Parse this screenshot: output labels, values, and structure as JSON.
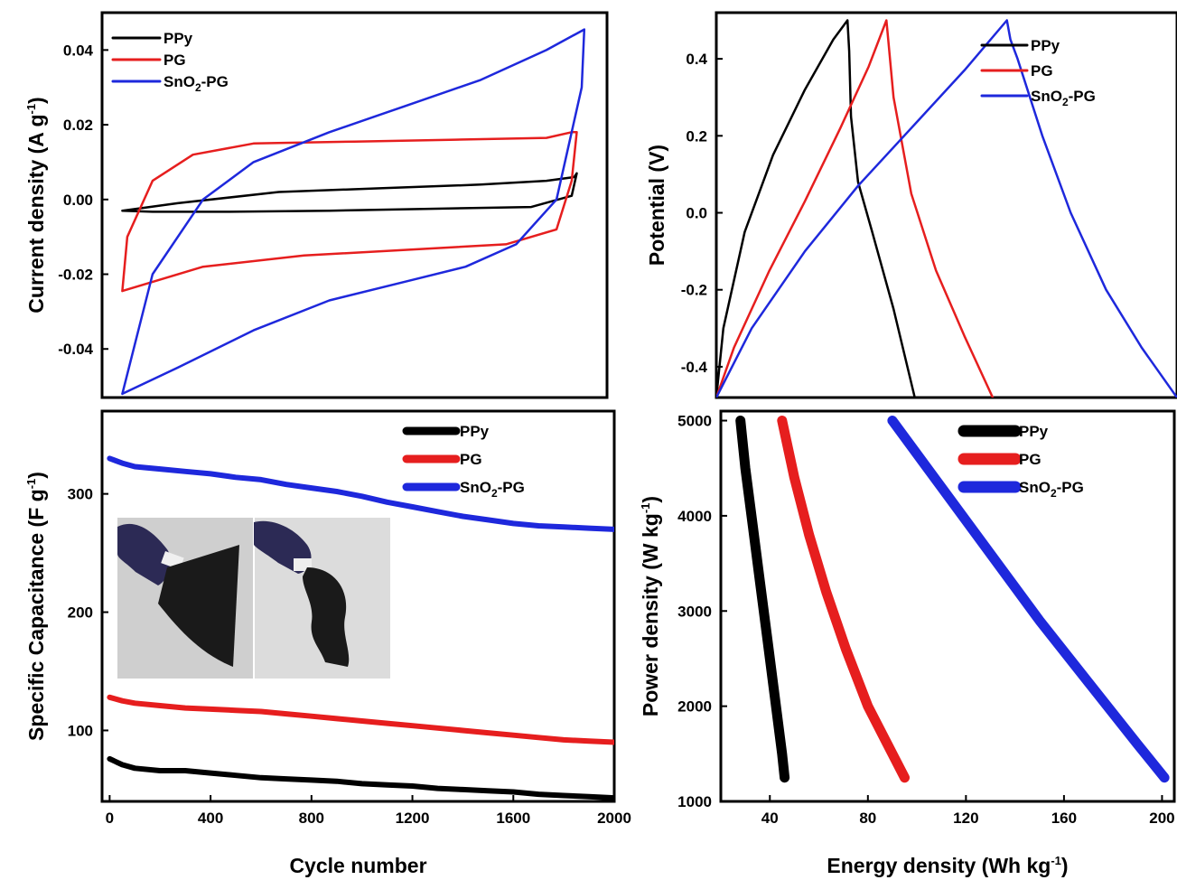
{
  "chart_data": [
    {
      "type": "line",
      "panel": "cv",
      "ylabel": "Current density (A g",
      "ylabel_sup": "-1",
      "ylabel_close": ")",
      "xlabel": "",
      "xlim": [
        0,
        1
      ],
      "ylim": [
        -0.053,
        0.05
      ],
      "y_ticks": [
        "0.04",
        "0.02",
        "0.00",
        "-0.02",
        "-0.04"
      ],
      "y_tick_values": [
        0.04,
        0.02,
        0.0,
        -0.02,
        -0.04
      ],
      "x_ticks": [],
      "legend_position": "top-left",
      "series": [
        {
          "name": "PPy",
          "color": "#000000",
          "x": [
            0.04,
            0.15,
            0.35,
            0.55,
            0.75,
            0.88,
            0.935,
            0.94,
            0.93,
            0.85,
            0.65,
            0.45,
            0.25,
            0.1,
            0.04
          ],
          "y": [
            -0.003,
            -0.001,
            0.002,
            0.003,
            0.004,
            0.005,
            0.006,
            0.007,
            0.001,
            -0.002,
            -0.0025,
            -0.003,
            -0.0033,
            -0.0033,
            -0.003
          ]
        },
        {
          "name": "PG",
          "color": "#e61e1e",
          "x": [
            0.04,
            0.05,
            0.1,
            0.18,
            0.3,
            0.5,
            0.7,
            0.88,
            0.93,
            0.94,
            0.93,
            0.9,
            0.8,
            0.6,
            0.4,
            0.2,
            0.04
          ],
          "y": [
            -0.0245,
            -0.01,
            0.005,
            0.012,
            0.015,
            0.0155,
            0.016,
            0.0165,
            0.018,
            0.018,
            0.005,
            -0.008,
            -0.012,
            -0.0135,
            -0.015,
            -0.018,
            -0.0245
          ]
        },
        {
          "name": "SnO2-PG",
          "color": "#1e28dc",
          "x": [
            0.04,
            0.1,
            0.2,
            0.3,
            0.45,
            0.6,
            0.75,
            0.88,
            0.955,
            0.95,
            0.9,
            0.82,
            0.72,
            0.6,
            0.45,
            0.3,
            0.15,
            0.04
          ],
          "y": [
            -0.052,
            -0.02,
            0.0,
            0.01,
            0.018,
            0.025,
            0.032,
            0.04,
            0.0455,
            0.03,
            0.0,
            -0.012,
            -0.018,
            -0.022,
            -0.027,
            -0.035,
            -0.045,
            -0.052
          ]
        }
      ],
      "legend": [
        {
          "label": "PPy",
          "sub": ""
        },
        {
          "label": "PG",
          "sub": ""
        },
        {
          "label": "SnO",
          "sub": "2",
          "tail": "-PG"
        }
      ]
    },
    {
      "type": "line",
      "panel": "gcd",
      "ylabel": "Potential (V)",
      "xlabel": "",
      "xlim": [
        0,
        130
      ],
      "ylim": [
        -0.48,
        0.52
      ],
      "y_ticks": [
        "0.4",
        "0.2",
        "0.0",
        "-0.2",
        "-0.4"
      ],
      "y_tick_values": [
        0.4,
        0.2,
        0.0,
        -0.2,
        -0.4
      ],
      "x_ticks": [],
      "legend_position": "top-right",
      "series": [
        {
          "name": "PPy",
          "color": "#000000",
          "x": [
            0,
            2,
            8,
            16,
            25,
            33,
            37,
            37.5,
            38,
            40,
            44,
            50,
            56
          ],
          "y": [
            -0.48,
            -0.3,
            -0.05,
            0.15,
            0.32,
            0.45,
            0.5,
            0.42,
            0.25,
            0.08,
            -0.05,
            -0.25,
            -0.48
          ]
        },
        {
          "name": "PG",
          "color": "#e61e1e",
          "x": [
            0,
            5,
            15,
            25,
            35,
            43,
            48,
            48.5,
            50,
            55,
            62,
            70,
            78
          ],
          "y": [
            -0.48,
            -0.35,
            -0.15,
            0.03,
            0.22,
            0.38,
            0.5,
            0.45,
            0.3,
            0.05,
            -0.15,
            -0.32,
            -0.48
          ]
        },
        {
          "name": "SnO2-PG",
          "color": "#1e28dc",
          "x": [
            0,
            10,
            25,
            40,
            55,
            70,
            82,
            83,
            85,
            92,
            100,
            110,
            120,
            130
          ],
          "y": [
            -0.48,
            -0.3,
            -0.1,
            0.07,
            0.22,
            0.37,
            0.5,
            0.45,
            0.4,
            0.2,
            0.0,
            -0.2,
            -0.35,
            -0.48
          ]
        }
      ],
      "legend": [
        {
          "label": "PPy",
          "sub": ""
        },
        {
          "label": "PG",
          "sub": ""
        },
        {
          "label": "SnO",
          "sub": "2",
          "tail": "-PG"
        }
      ]
    },
    {
      "type": "line",
      "panel": "cycling",
      "ylabel": "Specific Capacitance (F g",
      "ylabel_sup": "-1",
      "ylabel_close": ")",
      "xlabel": "Cycle number",
      "xlim": [
        -30,
        2000
      ],
      "ylim": [
        40,
        370
      ],
      "y_ticks": [
        "300",
        "200",
        "100"
      ],
      "y_tick_values": [
        300,
        200,
        100
      ],
      "x_ticks": [
        "0",
        "400",
        "800",
        "1200",
        "1600",
        "2000"
      ],
      "x_tick_values": [
        0,
        400,
        800,
        1200,
        1600,
        2000
      ],
      "legend_position": "top-right",
      "series": [
        {
          "name": "SnO2-PG",
          "color": "#1e28dc",
          "x": [
            0,
            50,
            100,
            200,
            300,
            400,
            500,
            600,
            700,
            800,
            900,
            1000,
            1100,
            1200,
            1300,
            1400,
            1500,
            1600,
            1700,
            1800,
            1900,
            2000
          ],
          "y": [
            330,
            326,
            323,
            321,
            319,
            317,
            314,
            312,
            308,
            305,
            302,
            298,
            293,
            289,
            285,
            281,
            278,
            275,
            273,
            272,
            271,
            270
          ]
        },
        {
          "name": "PG",
          "color": "#e61e1e",
          "x": [
            0,
            50,
            100,
            200,
            300,
            400,
            500,
            600,
            700,
            800,
            900,
            1000,
            1100,
            1200,
            1300,
            1400,
            1500,
            1600,
            1700,
            1800,
            1900,
            2000
          ],
          "y": [
            128,
            125,
            123,
            121,
            119,
            118,
            117,
            116,
            114,
            112,
            110,
            108,
            106,
            104,
            102,
            100,
            98,
            96,
            94,
            92,
            91,
            90
          ]
        },
        {
          "name": "PPy",
          "color": "#000000",
          "x": [
            0,
            50,
            100,
            200,
            300,
            400,
            500,
            600,
            700,
            800,
            900,
            1000,
            1100,
            1200,
            1300,
            1400,
            1500,
            1600,
            1700,
            1800,
            1900,
            2000
          ],
          "y": [
            76,
            71,
            68,
            66,
            66,
            64,
            62,
            60,
            59,
            58,
            57,
            55,
            54,
            53,
            51,
            50,
            49,
            48,
            46,
            45,
            44,
            43
          ]
        }
      ],
      "legend": [
        {
          "label": "PPy",
          "sub": ""
        },
        {
          "label": "PG",
          "sub": ""
        },
        {
          "label": "SnO",
          "sub": "2",
          "tail": "-PG"
        }
      ]
    },
    {
      "type": "line",
      "panel": "ragone",
      "ylabel": "Power density (W kg",
      "ylabel_sup": "-1",
      "ylabel_close": ")",
      "xlabel": "Energy density  (Wh kg",
      "xlabel_sup": "-1",
      "xlabel_close": ")",
      "xlim": [
        20,
        205
      ],
      "ylim": [
        1000,
        5100
      ],
      "y_ticks": [
        "5000",
        "4000",
        "3000",
        "2000",
        "1000"
      ],
      "y_tick_values": [
        5000,
        4000,
        3000,
        2000,
        1000
      ],
      "x_ticks": [
        "40",
        "80",
        "120",
        "160",
        "200"
      ],
      "x_tick_values": [
        40,
        80,
        120,
        160,
        200
      ],
      "legend_position": "top-right",
      "series": [
        {
          "name": "PPy",
          "color": "#000000",
          "x": [
            28,
            30,
            33,
            36,
            39,
            42,
            45,
            46
          ],
          "y": [
            5000,
            4500,
            3900,
            3300,
            2700,
            2100,
            1500,
            1250
          ]
        },
        {
          "name": "PG",
          "color": "#e61e1e",
          "x": [
            45,
            50,
            56,
            63,
            71,
            80,
            88,
            95
          ],
          "y": [
            5000,
            4400,
            3800,
            3200,
            2600,
            2000,
            1600,
            1250
          ]
        },
        {
          "name": "SnO2-PG",
          "color": "#1e28dc",
          "x": [
            90,
            110,
            130,
            150,
            170,
            190,
            201
          ],
          "y": [
            5000,
            4300,
            3600,
            2900,
            2250,
            1600,
            1250
          ]
        }
      ],
      "legend": [
        {
          "label": "PPy",
          "sub": ""
        },
        {
          "label": "PG",
          "sub": ""
        },
        {
          "label": "SnO",
          "sub": "2",
          "tail": "-PG"
        }
      ]
    }
  ]
}
